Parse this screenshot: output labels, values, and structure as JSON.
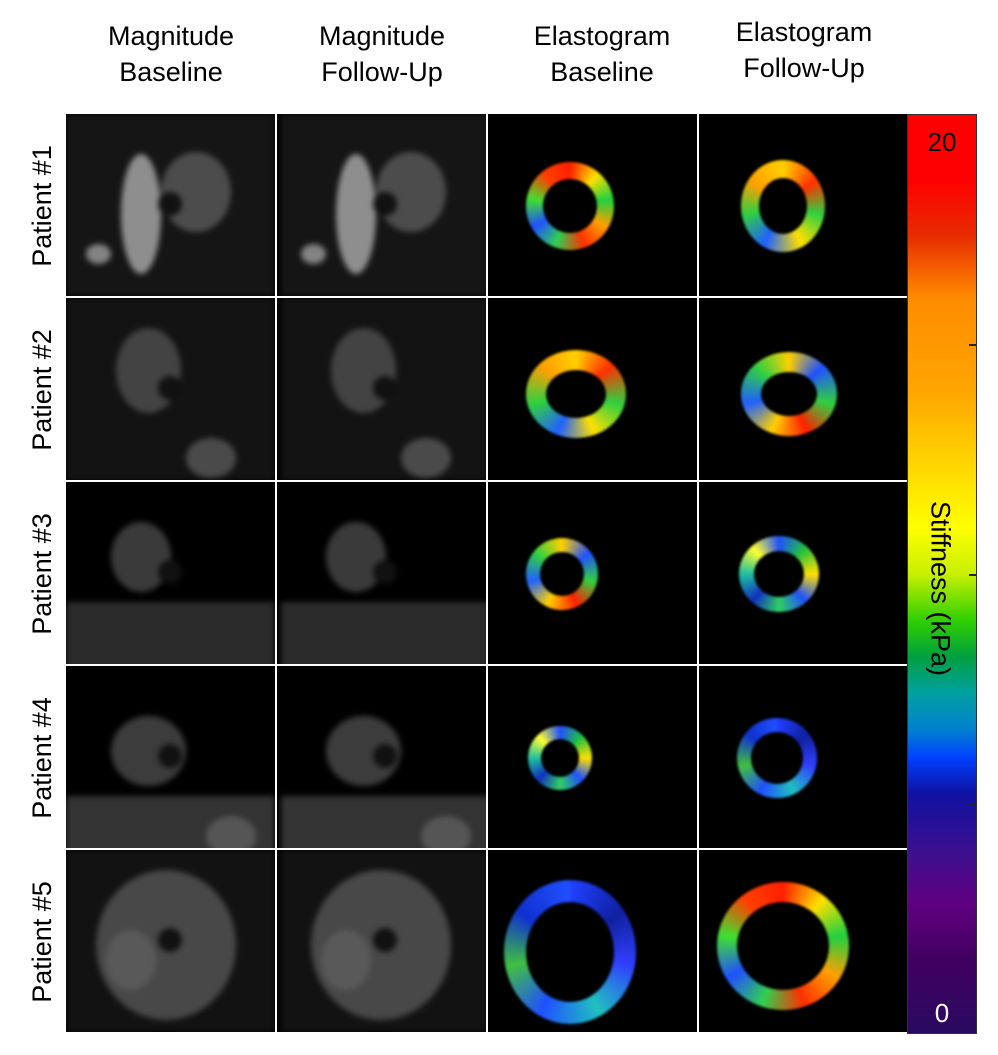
{
  "columns": [
    {
      "line1": "Magnitude",
      "line2": "Baseline"
    },
    {
      "line1": "Magnitude",
      "line2": "Follow-Up"
    },
    {
      "line1": "Elastogram",
      "line2": "Baseline"
    },
    {
      "line1": "Elastogram",
      "line2": "Follow-Up"
    }
  ],
  "rows": [
    "Patient #1",
    "Patient #2",
    "Patient #3",
    "Patient #4",
    "Patient #5"
  ],
  "colorbar": {
    "title": "Stiffness (kPa)",
    "max_label": "20",
    "min_label": "0",
    "min": 0,
    "max": 20
  }
}
